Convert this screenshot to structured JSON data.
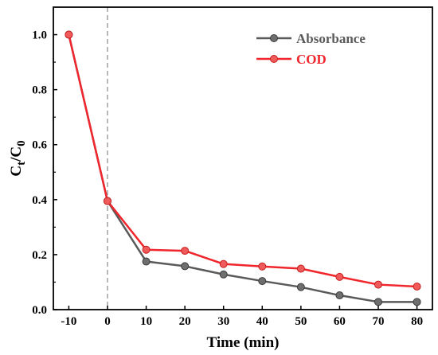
{
  "chart_data": {
    "type": "line",
    "xlabel": "Time (min)",
    "ylabel": {
      "main": "C",
      "sub_t": "t",
      "sep": "/C",
      "sub_0": "0"
    },
    "x": [
      -10,
      0,
      10,
      20,
      30,
      40,
      50,
      60,
      70,
      80
    ],
    "xlim": [
      -14,
      84
    ],
    "ylim": [
      0,
      1.1
    ],
    "xticks": [
      "-10",
      "0",
      "10",
      "20",
      "30",
      "40",
      "50",
      "60",
      "70",
      "80"
    ],
    "yticks": [
      "0.0",
      "0.2",
      "0.4",
      "0.6",
      "0.8",
      "1.0"
    ],
    "vline_x": 0,
    "legend_position": "top-right",
    "series": [
      {
        "name": "Absorbance",
        "color": "#5a5a5a",
        "values": [
          1.0,
          0.395,
          0.175,
          0.158,
          0.128,
          0.104,
          0.082,
          0.052,
          0.028,
          0.028
        ]
      },
      {
        "name": "COD",
        "color": "#f0262c",
        "values": [
          1.0,
          0.395,
          0.218,
          0.214,
          0.166,
          0.157,
          0.149,
          0.119,
          0.091,
          0.084
        ]
      }
    ]
  }
}
